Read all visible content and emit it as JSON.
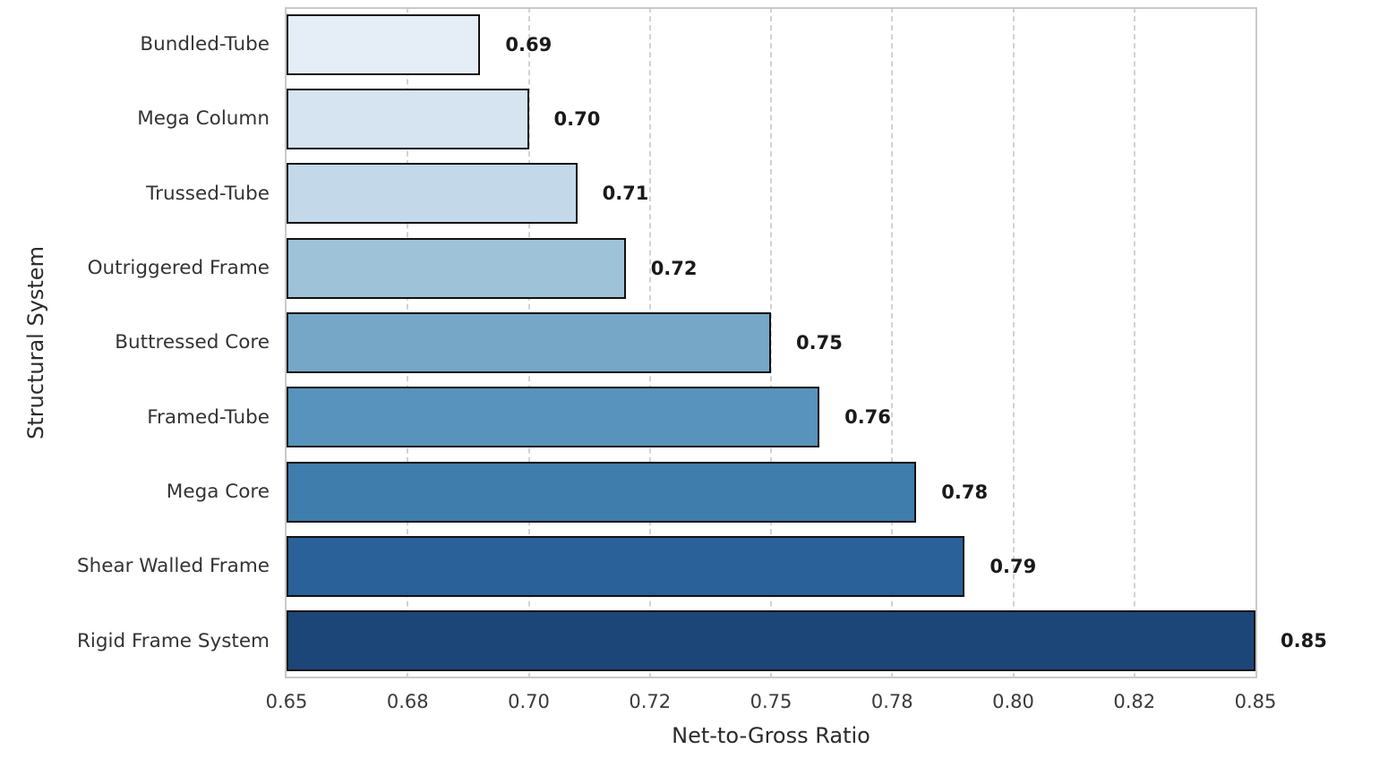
{
  "chart_data": {
    "type": "bar",
    "orientation": "horizontal",
    "xlabel": "Net-to-Gross Ratio",
    "ylabel": "Structural System",
    "categories": [
      "Bundled-Tube",
      "Mega Column",
      "Trussed-Tube",
      "Outriggered Frame",
      "Buttressed Core",
      "Framed-Tube",
      "Mega Core",
      "Shear Walled Frame",
      "Rigid Frame System"
    ],
    "values": [
      0.69,
      0.7,
      0.71,
      0.72,
      0.75,
      0.76,
      0.78,
      0.79,
      0.85
    ],
    "value_labels": [
      "0.69",
      "0.70",
      "0.71",
      "0.72",
      "0.75",
      "0.76",
      "0.78",
      "0.79",
      "0.85"
    ],
    "xlim": [
      0.65,
      0.85
    ],
    "xticks": [
      0.65,
      0.675,
      0.7,
      0.725,
      0.75,
      0.775,
      0.8,
      0.825,
      0.85
    ],
    "xtick_labels": [
      "0.65",
      "0.68",
      "0.70",
      "0.72",
      "0.75",
      "0.78",
      "0.80",
      "0.82",
      "0.85"
    ],
    "grid": "vertical-dashed",
    "legend": "none",
    "bar_colors": [
      "#e5eef6",
      "#d5e4f0",
      "#c3d8e9",
      "#9ec3d9",
      "#76a7c7",
      "#5793bc",
      "#3e7dac",
      "#2a6199",
      "#1b4677"
    ],
    "bar_edge_color": "#111111",
    "grid_color": "#d2d2d2",
    "spine_color": "#c9c9c9",
    "category_label_color": "#333333",
    "value_label_color": "#1a1a1a",
    "axis_title_color": "#2b2b2b",
    "tick_label_color": "#3a3a3a",
    "background_color": "#ffffff"
  }
}
